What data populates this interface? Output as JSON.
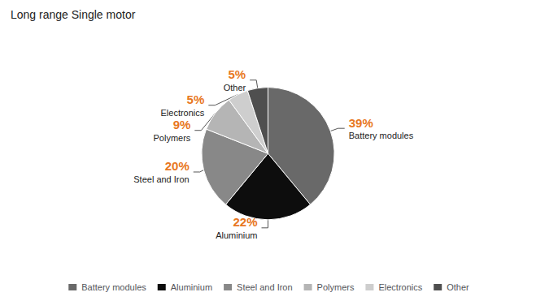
{
  "chart_data": {
    "type": "pie",
    "title": "Long range Single motor",
    "categories": [
      "Battery modules",
      "Aluminium",
      "Steel and Iron",
      "Polymers",
      "Electronics",
      "Other"
    ],
    "values": [
      39,
      22,
      20,
      9,
      5,
      5
    ],
    "value_labels": [
      "39%",
      "22%",
      "20%",
      "9%",
      "5%",
      "5%"
    ],
    "colors": [
      "#696969",
      "#0d0d0d",
      "#888888",
      "#b5b5b5",
      "#cecece",
      "#4f4f4f"
    ],
    "data_labels": true,
    "legend": "bottom"
  }
}
